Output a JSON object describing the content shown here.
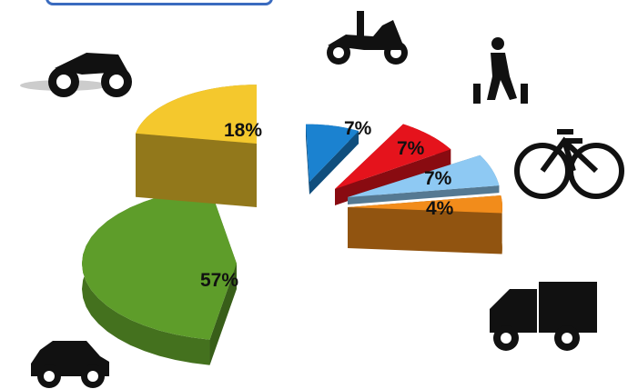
{
  "chart_data": {
    "type": "pie",
    "slices": [
      {
        "category": "car",
        "value": 57,
        "label": "57%",
        "color": "#5e9d2a",
        "icon": "car-icon"
      },
      {
        "category": "motorcycle",
        "value": 18,
        "label": "18%",
        "color": "#f4c82d",
        "icon": "motorcycle-icon"
      },
      {
        "category": "scooter",
        "value": 7,
        "label": "7%",
        "color": "#1b82d0",
        "icon": "scooter-icon"
      },
      {
        "category": "pedestrian",
        "value": 7,
        "label": "7%",
        "color": "#e5131c",
        "icon": "pedestrian-icon"
      },
      {
        "category": "bicycle",
        "value": 7,
        "label": "7%",
        "color": "#8ec9f3",
        "icon": "bicycle-icon"
      },
      {
        "category": "truck",
        "value": 4,
        "label": "4%",
        "color": "#f28c1b",
        "icon": "truck-icon"
      }
    ],
    "exploded": true,
    "three_d": true,
    "legend": "none"
  }
}
